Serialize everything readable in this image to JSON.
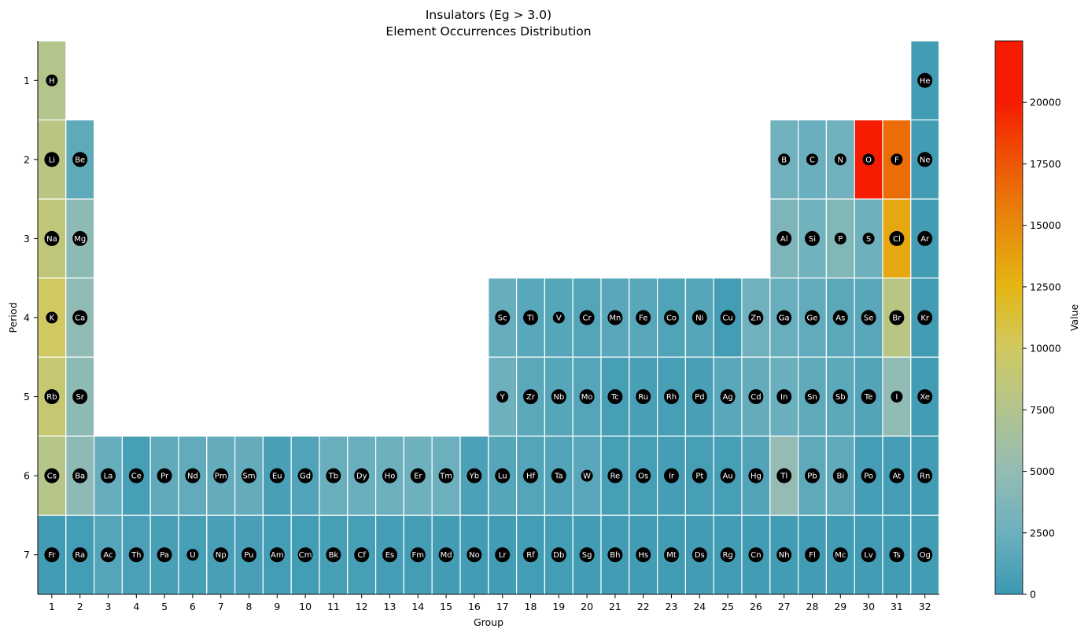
{
  "chart_data": {
    "type": "heatmap",
    "title_line1": "Insulators (Eg > 3.0)",
    "title_line2": "Element Occurrences Distribution",
    "xlabel": "Group",
    "ylabel": "Period",
    "x_ticks": [
      1,
      2,
      3,
      4,
      5,
      6,
      7,
      8,
      9,
      10,
      11,
      12,
      13,
      14,
      15,
      16,
      17,
      18,
      19,
      20,
      21,
      22,
      23,
      24,
      25,
      26,
      27,
      28,
      29,
      30,
      31,
      32
    ],
    "y_ticks": [
      1,
      2,
      3,
      4,
      5,
      6,
      7
    ],
    "colorbar": {
      "label": "Value",
      "min": 0,
      "max": 22500,
      "ticks": [
        0,
        2500,
        5000,
        7500,
        10000,
        12500,
        15000,
        17500,
        20000
      ],
      "colors": [
        "#3b99b3",
        "#6cb0be",
        "#94bcb4",
        "#b2c48e",
        "#d0c961",
        "#e4b614",
        "#e78a0b",
        "#ee5705",
        "#f51c01"
      ]
    },
    "elements": [
      {
        "symbol": "H",
        "period": 1,
        "group": 1,
        "value": 7600
      },
      {
        "symbol": "He",
        "period": 1,
        "group": 32,
        "value": 300
      },
      {
        "symbol": "Li",
        "period": 2,
        "group": 1,
        "value": 8100
      },
      {
        "symbol": "Be",
        "period": 2,
        "group": 2,
        "value": 1800
      },
      {
        "symbol": "B",
        "period": 2,
        "group": 27,
        "value": 2800
      },
      {
        "symbol": "C",
        "period": 2,
        "group": 28,
        "value": 2400
      },
      {
        "symbol": "N",
        "period": 2,
        "group": 29,
        "value": 2800
      },
      {
        "symbol": "O",
        "period": 2,
        "group": 30,
        "value": 22400
      },
      {
        "symbol": "F",
        "period": 2,
        "group": 31,
        "value": 16400
      },
      {
        "symbol": "Ne",
        "period": 2,
        "group": 32,
        "value": 300
      },
      {
        "symbol": "Na",
        "period": 3,
        "group": 1,
        "value": 8600
      },
      {
        "symbol": "Mg",
        "period": 3,
        "group": 2,
        "value": 4600
      },
      {
        "symbol": "Al",
        "period": 3,
        "group": 27,
        "value": 3600
      },
      {
        "symbol": "Si",
        "period": 3,
        "group": 28,
        "value": 2900
      },
      {
        "symbol": "P",
        "period": 3,
        "group": 29,
        "value": 3900
      },
      {
        "symbol": "S",
        "period": 3,
        "group": 30,
        "value": 2600
      },
      {
        "symbol": "Cl",
        "period": 3,
        "group": 31,
        "value": 13300
      },
      {
        "symbol": "Ar",
        "period": 3,
        "group": 32,
        "value": 300
      },
      {
        "symbol": "K",
        "period": 4,
        "group": 1,
        "value": 10000
      },
      {
        "symbol": "Ca",
        "period": 4,
        "group": 2,
        "value": 4800
      },
      {
        "symbol": "Sc",
        "period": 4,
        "group": 17,
        "value": 2200
      },
      {
        "symbol": "Ti",
        "period": 4,
        "group": 18,
        "value": 1500
      },
      {
        "symbol": "V",
        "period": 4,
        "group": 19,
        "value": 1400
      },
      {
        "symbol": "Cr",
        "period": 4,
        "group": 20,
        "value": 1300
      },
      {
        "symbol": "Mn",
        "period": 4,
        "group": 21,
        "value": 1500
      },
      {
        "symbol": "Fe",
        "period": 4,
        "group": 22,
        "value": 1500
      },
      {
        "symbol": "Co",
        "period": 4,
        "group": 23,
        "value": 1100
      },
      {
        "symbol": "Ni",
        "period": 4,
        "group": 24,
        "value": 1400
      },
      {
        "symbol": "Cu",
        "period": 4,
        "group": 25,
        "value": 400
      },
      {
        "symbol": "Zn",
        "period": 4,
        "group": 26,
        "value": 2800
      },
      {
        "symbol": "Ga",
        "period": 4,
        "group": 27,
        "value": 2300
      },
      {
        "symbol": "Ge",
        "period": 4,
        "group": 28,
        "value": 2000
      },
      {
        "symbol": "As",
        "period": 4,
        "group": 29,
        "value": 1600
      },
      {
        "symbol": "Se",
        "period": 4,
        "group": 30,
        "value": 1500
      },
      {
        "symbol": "Br",
        "period": 4,
        "group": 31,
        "value": 8100
      },
      {
        "symbol": "Kr",
        "period": 4,
        "group": 32,
        "value": 300
      },
      {
        "symbol": "Rb",
        "period": 5,
        "group": 1,
        "value": 9100
      },
      {
        "symbol": "Sr",
        "period": 5,
        "group": 2,
        "value": 4600
      },
      {
        "symbol": "Y",
        "period": 5,
        "group": 17,
        "value": 2600
      },
      {
        "symbol": "Zr",
        "period": 5,
        "group": 18,
        "value": 1600
      },
      {
        "symbol": "Nb",
        "period": 5,
        "group": 19,
        "value": 1400
      },
      {
        "symbol": "Mo",
        "period": 5,
        "group": 20,
        "value": 1300
      },
      {
        "symbol": "Tc",
        "period": 5,
        "group": 21,
        "value": 600
      },
      {
        "symbol": "Ru",
        "period": 5,
        "group": 22,
        "value": 700
      },
      {
        "symbol": "Rh",
        "period": 5,
        "group": 23,
        "value": 600
      },
      {
        "symbol": "Pd",
        "period": 5,
        "group": 24,
        "value": 700
      },
      {
        "symbol": "Ag",
        "period": 5,
        "group": 25,
        "value": 1500
      },
      {
        "symbol": "Cd",
        "period": 5,
        "group": 26,
        "value": 2100
      },
      {
        "symbol": "In",
        "period": 5,
        "group": 27,
        "value": 2400
      },
      {
        "symbol": "Sn",
        "period": 5,
        "group": 28,
        "value": 1800
      },
      {
        "symbol": "Sb",
        "period": 5,
        "group": 29,
        "value": 1600
      },
      {
        "symbol": "Te",
        "period": 5,
        "group": 30,
        "value": 1200
      },
      {
        "symbol": "I",
        "period": 5,
        "group": 31,
        "value": 4800
      },
      {
        "symbol": "Xe",
        "period": 5,
        "group": 32,
        "value": 300
      },
      {
        "symbol": "Cs",
        "period": 6,
        "group": 1,
        "value": 7800
      },
      {
        "symbol": "Ba",
        "period": 6,
        "group": 2,
        "value": 4600
      },
      {
        "symbol": "La",
        "period": 6,
        "group": 3,
        "value": 2200
      },
      {
        "symbol": "Ce",
        "period": 6,
        "group": 4,
        "value": 600
      },
      {
        "symbol": "Pr",
        "period": 6,
        "group": 5,
        "value": 1900
      },
      {
        "symbol": "Nd",
        "period": 6,
        "group": 6,
        "value": 2000
      },
      {
        "symbol": "Pm",
        "period": 6,
        "group": 7,
        "value": 2100
      },
      {
        "symbol": "Sm",
        "period": 6,
        "group": 8,
        "value": 2100
      },
      {
        "symbol": "Eu",
        "period": 6,
        "group": 9,
        "value": 700
      },
      {
        "symbol": "Gd",
        "period": 6,
        "group": 10,
        "value": 1100
      },
      {
        "symbol": "Tb",
        "period": 6,
        "group": 11,
        "value": 2400
      },
      {
        "symbol": "Dy",
        "period": 6,
        "group": 12,
        "value": 2400
      },
      {
        "symbol": "Ho",
        "period": 6,
        "group": 13,
        "value": 2500
      },
      {
        "symbol": "Er",
        "period": 6,
        "group": 14,
        "value": 2600
      },
      {
        "symbol": "Tm",
        "period": 6,
        "group": 15,
        "value": 2500
      },
      {
        "symbol": "Yb",
        "period": 6,
        "group": 16,
        "value": 900
      },
      {
        "symbol": "Lu",
        "period": 6,
        "group": 17,
        "value": 1400
      },
      {
        "symbol": "Hf",
        "period": 6,
        "group": 18,
        "value": 1300
      },
      {
        "symbol": "Ta",
        "period": 6,
        "group": 19,
        "value": 1200
      },
      {
        "symbol": "W",
        "period": 6,
        "group": 20,
        "value": 1500
      },
      {
        "symbol": "Re",
        "period": 6,
        "group": 21,
        "value": 600
      },
      {
        "symbol": "Os",
        "period": 6,
        "group": 22,
        "value": 600
      },
      {
        "symbol": "Ir",
        "period": 6,
        "group": 23,
        "value": 500
      },
      {
        "symbol": "Pt",
        "period": 6,
        "group": 24,
        "value": 600
      },
      {
        "symbol": "Au",
        "period": 6,
        "group": 25,
        "value": 600
      },
      {
        "symbol": "Hg",
        "period": 6,
        "group": 26,
        "value": 1100
      },
      {
        "symbol": "Tl",
        "period": 6,
        "group": 27,
        "value": 5000
      },
      {
        "symbol": "Pb",
        "period": 6,
        "group": 28,
        "value": 1800
      },
      {
        "symbol": "Bi",
        "period": 6,
        "group": 29,
        "value": 1900
      },
      {
        "symbol": "Po",
        "period": 6,
        "group": 30,
        "value": 500
      },
      {
        "symbol": "At",
        "period": 6,
        "group": 31,
        "value": 500
      },
      {
        "symbol": "Rn",
        "period": 6,
        "group": 32,
        "value": 300
      },
      {
        "symbol": "Fr",
        "period": 7,
        "group": 1,
        "value": 300
      },
      {
        "symbol": "Ra",
        "period": 7,
        "group": 2,
        "value": 400
      },
      {
        "symbol": "Ac",
        "period": 7,
        "group": 3,
        "value": 1300
      },
      {
        "symbol": "Th",
        "period": 7,
        "group": 4,
        "value": 800
      },
      {
        "symbol": "Pa",
        "period": 7,
        "group": 5,
        "value": 700
      },
      {
        "symbol": "U",
        "period": 7,
        "group": 6,
        "value": 600
      },
      {
        "symbol": "Np",
        "period": 7,
        "group": 7,
        "value": 700
      },
      {
        "symbol": "Pu",
        "period": 7,
        "group": 8,
        "value": 700
      },
      {
        "symbol": "Am",
        "period": 7,
        "group": 9,
        "value": 400
      },
      {
        "symbol": "Cm",
        "period": 7,
        "group": 10,
        "value": 400
      },
      {
        "symbol": "Bk",
        "period": 7,
        "group": 11,
        "value": 600
      },
      {
        "symbol": "Cf",
        "period": 7,
        "group": 12,
        "value": 600
      },
      {
        "symbol": "Es",
        "period": 7,
        "group": 13,
        "value": 500
      },
      {
        "symbol": "Fm",
        "period": 7,
        "group": 14,
        "value": 400
      },
      {
        "symbol": "Md",
        "period": 7,
        "group": 15,
        "value": 300
      },
      {
        "symbol": "No",
        "period": 7,
        "group": 16,
        "value": 300
      },
      {
        "symbol": "Lr",
        "period": 7,
        "group": 17,
        "value": 300
      },
      {
        "symbol": "Rf",
        "period": 7,
        "group": 18,
        "value": 400
      },
      {
        "symbol": "Db",
        "period": 7,
        "group": 19,
        "value": 400
      },
      {
        "symbol": "Sg",
        "period": 7,
        "group": 20,
        "value": 300
      },
      {
        "symbol": "Bh",
        "period": 7,
        "group": 21,
        "value": 300
      },
      {
        "symbol": "Hs",
        "period": 7,
        "group": 22,
        "value": 300
      },
      {
        "symbol": "Mt",
        "period": 7,
        "group": 23,
        "value": 300
      },
      {
        "symbol": "Ds",
        "period": 7,
        "group": 24,
        "value": 300
      },
      {
        "symbol": "Rg",
        "period": 7,
        "group": 25,
        "value": 300
      },
      {
        "symbol": "Cn",
        "period": 7,
        "group": 26,
        "value": 300
      },
      {
        "symbol": "Nh",
        "period": 7,
        "group": 27,
        "value": 300
      },
      {
        "symbol": "Fl",
        "period": 7,
        "group": 28,
        "value": 300
      },
      {
        "symbol": "Mc",
        "period": 7,
        "group": 29,
        "value": 300
      },
      {
        "symbol": "Lv",
        "period": 7,
        "group": 30,
        "value": 300
      },
      {
        "symbol": "Ts",
        "period": 7,
        "group": 31,
        "value": 300
      },
      {
        "symbol": "Og",
        "period": 7,
        "group": 32,
        "value": 300
      }
    ]
  }
}
